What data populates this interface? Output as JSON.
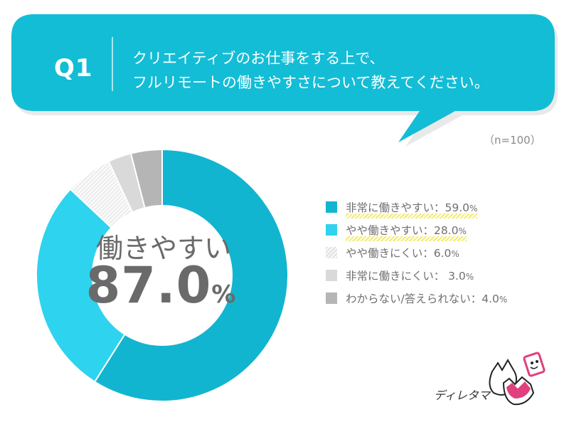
{
  "question": {
    "label": "Q1",
    "line1": "クリエイティブのお仕事をする上で、",
    "line2": "フルリモートの働きやすさについて教えてください。"
  },
  "sample_size": "（n=100）",
  "center": {
    "label": "働きやすい",
    "number": "87.0",
    "unit": "%"
  },
  "logo": {
    "text": "ディレタマ"
  },
  "colors": {
    "banner": "#13bdd6",
    "very_easy": "#12b5d0",
    "somewhat_easy": "#2ed3ef",
    "somewhat_hard": "#eeeeee",
    "very_hard": "#d9d9d9",
    "unknown": "#b5b5b5",
    "highlight": "#f4ec6a"
  },
  "chart_data": {
    "type": "pie",
    "donut": true,
    "categories": [
      "非常に働きやすい",
      "やや働きやすい",
      "やや働きにくい",
      "非常に働きにくい",
      "わからない/答えられない"
    ],
    "values": [
      59.0,
      28.0,
      6.0,
      3.0,
      4.0
    ],
    "legend_placement": "right",
    "legend": [
      {
        "label": "非常に働きやすい：",
        "value": "59.0",
        "unit": "%",
        "color": "#12b5d0",
        "pattern": "solid",
        "highlight": true
      },
      {
        "label": "やや働きやすい：",
        "value": "28.0",
        "unit": "%",
        "color": "#2ed3ef",
        "pattern": "solid",
        "highlight": true
      },
      {
        "label": "やや働きにくい：",
        "value": "6.0",
        "unit": "%",
        "color": "#eeeeee",
        "pattern": "hatched",
        "highlight": false
      },
      {
        "label": "非常に働きにくい： ",
        "value": "3.0",
        "unit": "%",
        "color": "#d9d9d9",
        "pattern": "solid",
        "highlight": false
      },
      {
        "label": "わからない/答えられない：",
        "value": "4.0",
        "unit": "%",
        "color": "#b5b5b5",
        "pattern": "solid",
        "highlight": false
      }
    ]
  }
}
